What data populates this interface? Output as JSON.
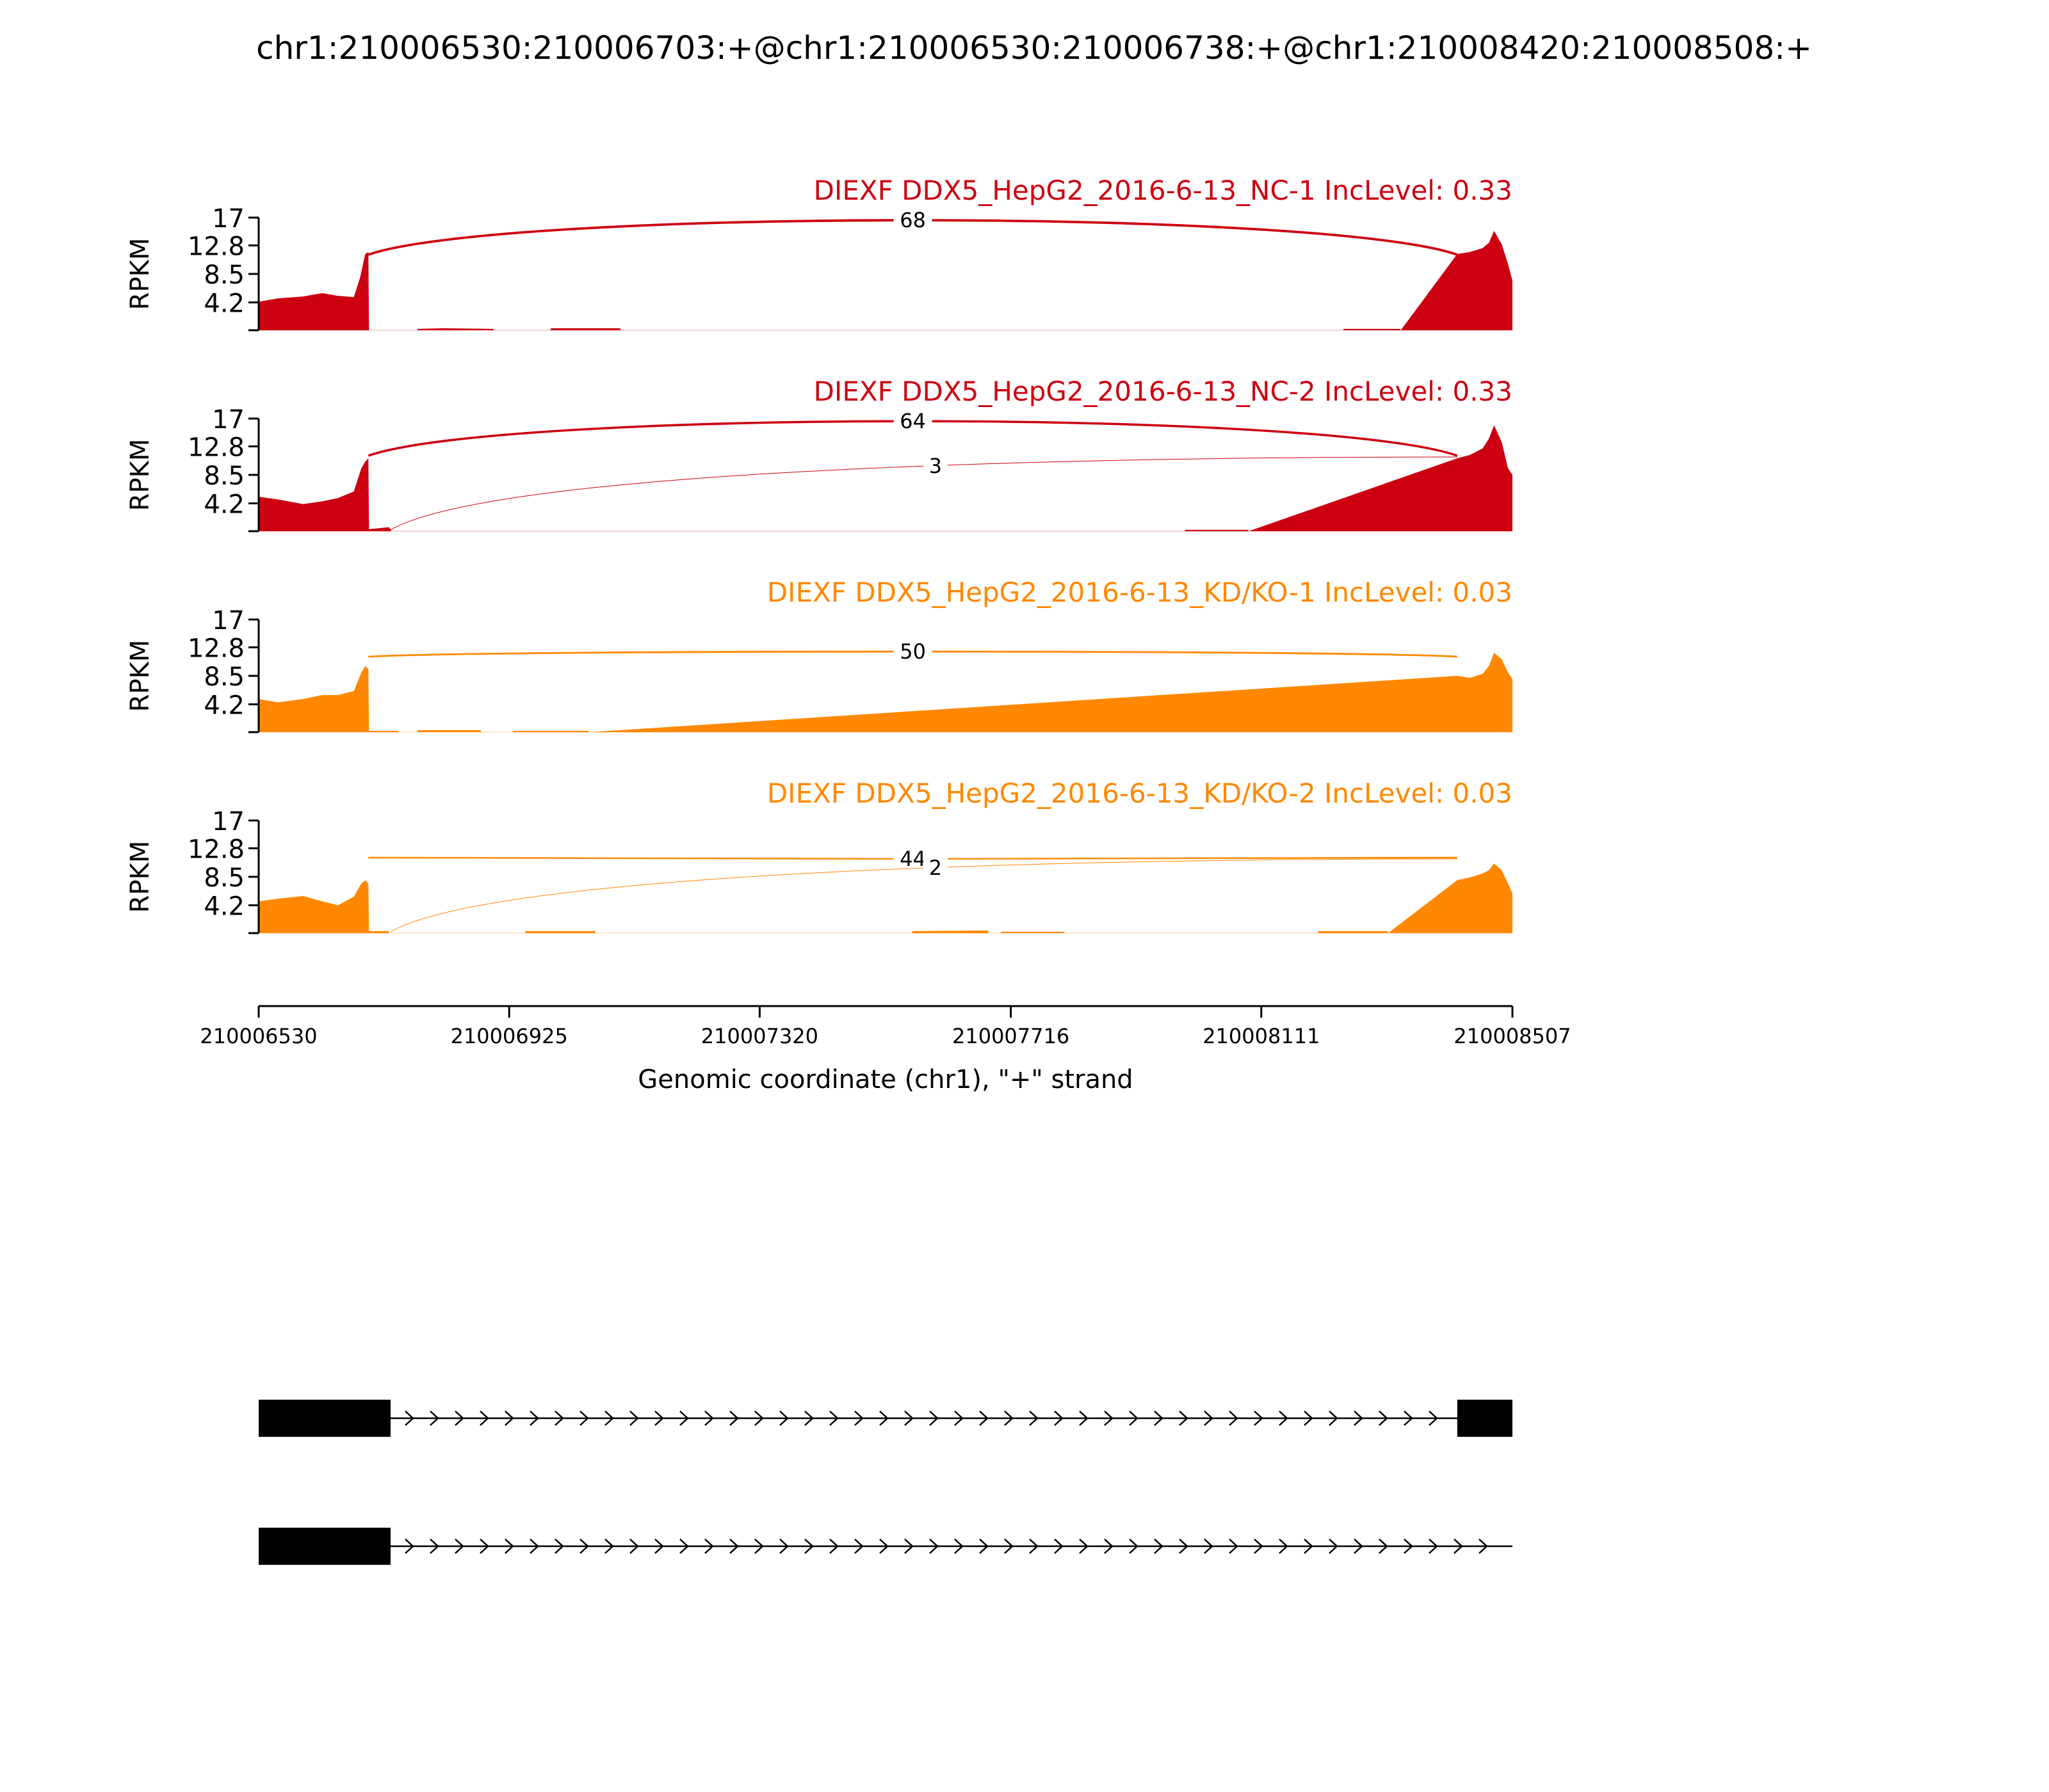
{
  "title": "chr1:210006530:210006703:+@chr1:210006530:210006738:+@chr1:210008420:210008508:+",
  "colors": {
    "nc": "#cc0011",
    "kd": "#ff8800",
    "gene": "#000000",
    "axis": "#000000"
  },
  "chart_data": {
    "type": "area",
    "title": "chr1:210006530:210006703:+@chr1:210006530:210006738:+@chr1:210008420:210008508:+",
    "xlabel": "Genomic coordinate (chr1), \"+\" strand",
    "ylabel": "RPKM",
    "xlim": [
      210006530,
      210008507
    ],
    "x_ticks": [
      "210006530",
      "210006925",
      "210007320",
      "210007716",
      "210008111",
      "210008507"
    ],
    "x_tick_values": [
      210006530,
      210006925,
      210007320,
      210007716,
      210008111,
      210008507
    ],
    "ylim": [
      0,
      17
    ],
    "y_ticks": [
      "17",
      "12.8",
      "8.5",
      "4.2"
    ],
    "y_tick_values": [
      17,
      12.8,
      8.5,
      4.2
    ],
    "tracks": [
      {
        "label": "DIEXF DDX5_HepG2_2016-6-13_NC-1 IncLevel: 0.33",
        "group": "nc",
        "coverage": [
          [
            210006530,
            4.3
          ],
          [
            210006560,
            4.8
          ],
          [
            210006600,
            5.1
          ],
          [
            210006630,
            5.6
          ],
          [
            210006655,
            5.2
          ],
          [
            210006680,
            5.0
          ],
          [
            210006690,
            8.0
          ],
          [
            210006698,
            11.5
          ],
          [
            210006703,
            11.8
          ],
          [
            210006704,
            0.0
          ],
          [
            210006780,
            0.0
          ],
          [
            210006781,
            0.2
          ],
          [
            210006820,
            0.3
          ],
          [
            210006900,
            0.2
          ],
          [
            210006901,
            0.0
          ],
          [
            210006990,
            0.0
          ],
          [
            210006991,
            0.3
          ],
          [
            210007100,
            0.3
          ],
          [
            210007101,
            0.0
          ],
          [
            210008240,
            0.0
          ],
          [
            210008241,
            0.2
          ],
          [
            210008330,
            0.2
          ],
          [
            210008331,
            0.0
          ],
          [
            210008420,
            11.5
          ],
          [
            210008440,
            11.8
          ],
          [
            210008460,
            12.4
          ],
          [
            210008470,
            13.2
          ],
          [
            210008478,
            15.0
          ],
          [
            210008490,
            13.0
          ],
          [
            210008500,
            10.0
          ],
          [
            210008507,
            7.5
          ]
        ],
        "junctions": [
          {
            "from": 210006703,
            "to": 210008420,
            "count": 68
          }
        ]
      },
      {
        "label": "DIEXF DDX5_HepG2_2016-6-13_NC-2 IncLevel: 0.33",
        "group": "nc",
        "coverage": [
          [
            210006530,
            5.2
          ],
          [
            210006560,
            4.8
          ],
          [
            210006600,
            4.1
          ],
          [
            210006630,
            4.5
          ],
          [
            210006655,
            5.0
          ],
          [
            210006680,
            6.0
          ],
          [
            210006692,
            9.5
          ],
          [
            210006698,
            10.5
          ],
          [
            210006703,
            11.0
          ],
          [
            210006704,
            0.3
          ],
          [
            210006735,
            0.6
          ],
          [
            210006738,
            0.3
          ],
          [
            210006739,
            0.0
          ],
          [
            210006820,
            0.0
          ],
          [
            210007990,
            0.0
          ],
          [
            210007991,
            0.2
          ],
          [
            210008090,
            0.2
          ],
          [
            210008091,
            0.0
          ],
          [
            210008420,
            11.0
          ],
          [
            210008440,
            11.5
          ],
          [
            210008460,
            12.5
          ],
          [
            210008470,
            14.0
          ],
          [
            210008478,
            16.0
          ],
          [
            210008490,
            13.5
          ],
          [
            210008500,
            9.5
          ],
          [
            210008507,
            8.5
          ]
        ],
        "junctions": [
          {
            "from": 210006703,
            "to": 210008420,
            "count": 64
          },
          {
            "from": 210006738,
            "to": 210008420,
            "count": 3
          }
        ]
      },
      {
        "label": "DIEXF DDX5_HepG2_2016-6-13_KD/KO-1 IncLevel: 0.03",
        "group": "kd",
        "coverage": [
          [
            210006530,
            5.0
          ],
          [
            210006560,
            4.5
          ],
          [
            210006600,
            5.0
          ],
          [
            210006630,
            5.6
          ],
          [
            210006655,
            5.6
          ],
          [
            210006680,
            6.2
          ],
          [
            210006692,
            9.0
          ],
          [
            210006698,
            10.0
          ],
          [
            210006703,
            9.5
          ],
          [
            210006704,
            0.2
          ],
          [
            210006750,
            0.2
          ],
          [
            210006751,
            0.0
          ],
          [
            210006780,
            0.0
          ],
          [
            210006781,
            0.3
          ],
          [
            210006880,
            0.3
          ],
          [
            210006881,
            0.0
          ],
          [
            210006930,
            0.0
          ],
          [
            210006931,
            0.2
          ],
          [
            210007050,
            0.2
          ],
          [
            210007051,
            0.0
          ],
          [
            210008420,
            8.5
          ],
          [
            210008440,
            8.2
          ],
          [
            210008460,
            8.8
          ],
          [
            210008470,
            10.0
          ],
          [
            210008478,
            12.0
          ],
          [
            210008490,
            11.0
          ],
          [
            210008500,
            9.0
          ],
          [
            210008507,
            8.0
          ]
        ],
        "junctions": [
          {
            "from": 210006703,
            "to": 210008420,
            "count": 50
          }
        ]
      },
      {
        "label": "DIEXF DDX5_HepG2_2016-6-13_KD/KO-2 IncLevel: 0.03",
        "group": "kd",
        "coverage": [
          [
            210006530,
            4.8
          ],
          [
            210006560,
            5.2
          ],
          [
            210006600,
            5.6
          ],
          [
            210006630,
            4.8
          ],
          [
            210006655,
            4.2
          ],
          [
            210006680,
            5.5
          ],
          [
            210006692,
            7.5
          ],
          [
            210006698,
            8.0
          ],
          [
            210006703,
            7.5
          ],
          [
            210006704,
            0.3
          ],
          [
            210006735,
            0.3
          ],
          [
            210006736,
            0.0
          ],
          [
            210006950,
            0.0
          ],
          [
            210006951,
            0.3
          ],
          [
            210007060,
            0.3
          ],
          [
            210007061,
            0.0
          ],
          [
            210007560,
            0.0
          ],
          [
            210007561,
            0.3
          ],
          [
            210007680,
            0.4
          ],
          [
            210007681,
            0.0
          ],
          [
            210007700,
            0.0
          ],
          [
            210007701,
            0.2
          ],
          [
            210007800,
            0.2
          ],
          [
            210007801,
            0.0
          ],
          [
            210008200,
            0.0
          ],
          [
            210008201,
            0.3
          ],
          [
            210008310,
            0.3
          ],
          [
            210008311,
            0.0
          ],
          [
            210008420,
            8.0
          ],
          [
            210008440,
            8.4
          ],
          [
            210008460,
            9.0
          ],
          [
            210008470,
            9.5
          ],
          [
            210008478,
            10.5
          ],
          [
            210008490,
            9.5
          ],
          [
            210008500,
            7.5
          ],
          [
            210008507,
            6.0
          ]
        ],
        "junctions": [
          {
            "from": 210006703,
            "to": 210008420,
            "count": 44
          },
          {
            "from": 210006738,
            "to": 210008420,
            "count": 2
          }
        ]
      }
    ],
    "isoforms": [
      {
        "exons": [
          [
            210006530,
            210006738
          ],
          [
            210008420,
            210008507
          ]
        ],
        "intron_end": 210008420
      },
      {
        "exons": [
          [
            210006530,
            210006738
          ]
        ],
        "intron_end": 210008507
      }
    ]
  }
}
